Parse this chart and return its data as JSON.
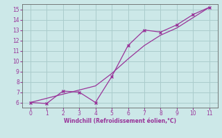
{
  "xlabel": "Windchill (Refroidissement éolien,°C)",
  "ylabel": "",
  "bg_color": "#cce8e8",
  "line_color": "#993399",
  "grid_color": "#aacccc",
  "axis_color": "#666666",
  "tick_color": "#993399",
  "label_color": "#993399",
  "x_data": [
    0,
    1,
    2,
    3,
    4,
    5,
    6,
    7,
    8,
    9,
    10,
    11
  ],
  "y_data1": [
    6.0,
    5.9,
    7.1,
    7.0,
    6.0,
    8.5,
    11.5,
    13.0,
    12.8,
    13.5,
    14.5,
    15.2
  ],
  "y_data2": [
    6.0,
    6.4,
    6.8,
    7.2,
    7.6,
    8.8,
    10.2,
    11.5,
    12.5,
    13.2,
    14.2,
    15.2
  ],
  "xlim": [
    -0.5,
    11.5
  ],
  "ylim": [
    5.5,
    15.5
  ],
  "xticks": [
    0,
    1,
    2,
    3,
    4,
    5,
    6,
    7,
    8,
    9,
    10,
    11
  ],
  "yticks": [
    6,
    7,
    8,
    9,
    10,
    11,
    12,
    13,
    14,
    15
  ]
}
